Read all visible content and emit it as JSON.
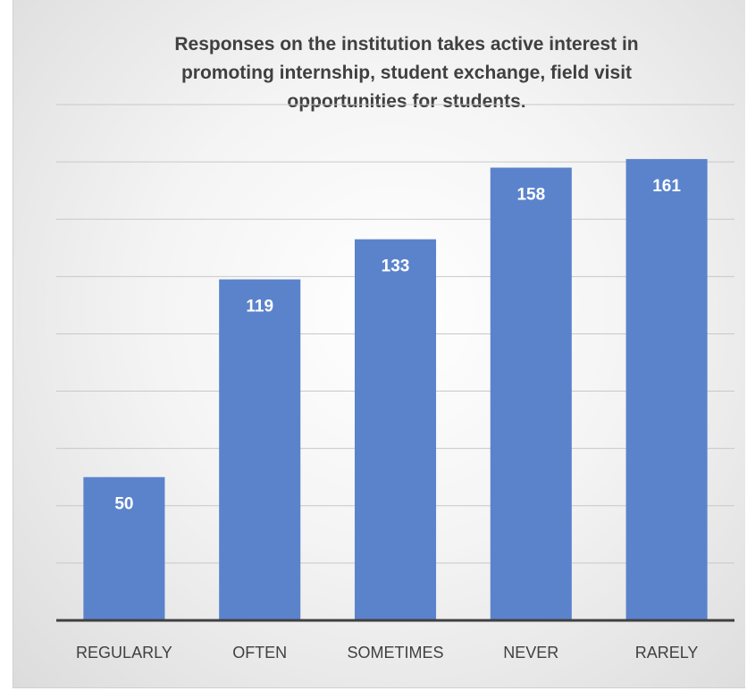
{
  "chart_data": {
    "type": "bar",
    "title": "Responses on the institution takes active interest in\npromoting internship, student exchange, field visit\nopportunities for students.",
    "xlabel": "",
    "ylabel": "",
    "categories": [
      "REGULARLY",
      "OFTEN",
      "SOMETIMES",
      "NEVER",
      "RARELY"
    ],
    "values": [
      50,
      119,
      133,
      158,
      161
    ],
    "ylim": [
      0,
      180
    ],
    "grid": true,
    "legend": "none",
    "bar_color": "#5b83cc",
    "axis_color": "#404040",
    "label_color": "#ffffff"
  }
}
